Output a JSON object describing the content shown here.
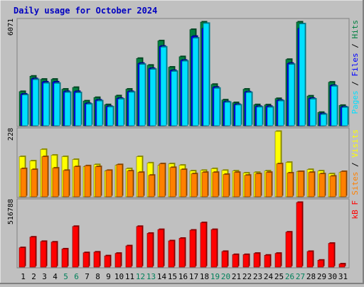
{
  "chart_data": {
    "type": "bar",
    "title": "Daily usage for October 2024",
    "days": [
      "1",
      "2",
      "3",
      "4",
      "5",
      "6",
      "7",
      "8",
      "9",
      "10",
      "11",
      "12",
      "13",
      "14",
      "15",
      "16",
      "17",
      "18",
      "19",
      "20",
      "21",
      "22",
      "23",
      "24",
      "25",
      "26",
      "27",
      "28",
      "29",
      "30",
      "31"
    ],
    "weekend_days": [
      "5",
      "6",
      "12",
      "13",
      "19",
      "20",
      "26",
      "27"
    ],
    "panels": [
      {
        "id": "hits-files-pages",
        "ymax_label": "6071",
        "ymax": 6071,
        "legend": [
          "Pages",
          "Files",
          "Hits"
        ],
        "series": [
          {
            "name": "Hits",
            "color": "#008040",
            "values": [
              2000,
              2900,
              2720,
              2720,
              2140,
              2240,
              1450,
              1650,
              1230,
              1750,
              2140,
              3940,
              3540,
              4970,
              3430,
              4040,
              5630,
              6070,
              2420,
              1510,
              1350,
              2140,
              1230,
              1220,
              1590,
              3880,
              6070,
              1740,
              780,
              2550,
              1190
            ]
          },
          {
            "name": "Files",
            "color": "#0000ff",
            "values": [
              1850,
              2750,
              2560,
              2560,
              2000,
              2000,
              1300,
              1500,
              1130,
              1600,
              2000,
              3650,
              3350,
              4650,
              3230,
              3830,
              5230,
              5700,
              2250,
              1400,
              1250,
              1980,
              1130,
              1130,
              1490,
              3650,
              5700,
              1600,
              700,
              2350,
              1100
            ]
          },
          {
            "name": "Pages",
            "color": "#00e0ff",
            "values": [
              1800,
              2700,
              2490,
              2480,
              1950,
              1930,
              1260,
              1450,
              1100,
              1560,
              1960,
              3590,
              3300,
              4600,
              3180,
              3780,
              5130,
              5990,
              2190,
              1370,
              1210,
              1940,
              1090,
              1080,
              1450,
              3590,
              5960,
              1560,
              660,
              2310,
              1070
            ]
          }
        ]
      },
      {
        "id": "visits-sites",
        "ymax_label": "228",
        "ymax": 228,
        "legend": [
          "Sites",
          "Visits"
        ],
        "series": [
          {
            "name": "Visits",
            "color": "#ffff00",
            "values": [
              140,
              125,
              165,
              145,
              140,
              130,
              105,
              112,
              90,
              110,
              98,
              140,
              118,
              110,
              115,
              110,
              90,
              92,
              98,
              92,
              90,
              83,
              85,
              90,
              228,
              120,
              88,
              95,
              90,
              80,
              85
            ]
          },
          {
            "name": "Sites",
            "color": "#ff8000",
            "values": [
              98,
              95,
              140,
              100,
              92,
              105,
              108,
              105,
              92,
              112,
              90,
              85,
              75,
              115,
              102,
              95,
              80,
              85,
              85,
              78,
              85,
              75,
              80,
              85,
              115,
              83,
              88,
              85,
              80,
              72,
              88
            ]
          }
        ]
      },
      {
        "id": "kbytes",
        "ymax_label": "516788",
        "ymax": 516788,
        "legend": [
          "kB F"
        ],
        "series": [
          {
            "name": "kB F",
            "color": "#ff0000",
            "values": [
              155000,
              240000,
              205000,
              200000,
              145000,
              325000,
              115000,
              120000,
              90000,
              110000,
              170000,
              325000,
              270000,
              300000,
              210000,
              230000,
              295000,
              355000,
              300000,
              125000,
              100000,
              100000,
              110000,
              95000,
              110000,
              280000,
              516788,
              125000,
              55000,
              190000,
              25000
            ]
          }
        ]
      }
    ]
  }
}
